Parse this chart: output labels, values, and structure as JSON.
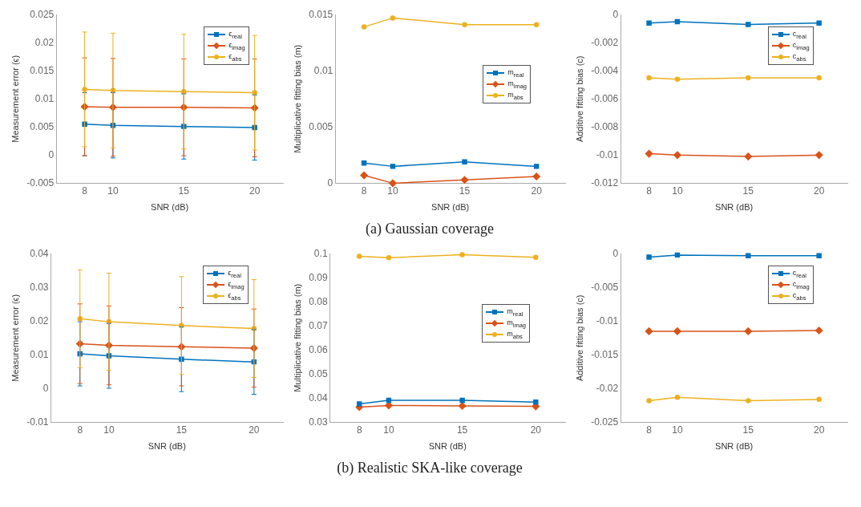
{
  "chart_data": [
    {
      "type": "line",
      "ylabel": "Measurement error (ϵ)",
      "xlabel": "SNR (dB)",
      "x": [
        8,
        10,
        15,
        20
      ],
      "xlim": [
        6,
        22
      ],
      "xticks": [
        8,
        10,
        15,
        20
      ],
      "ylim": [
        -0.005,
        0.025
      ],
      "yticks": [
        -0.005,
        0,
        0.005,
        0.01,
        0.015,
        0.02,
        0.025
      ],
      "legend": "top right",
      "series": [
        {
          "name": "ϵ$_{real}$",
          "color": "#0072bd",
          "marker": "square",
          "values": [
            0.0055,
            0.0053,
            0.0051,
            0.0049
          ],
          "errors": [
            0.0056,
            0.0058,
            0.0058,
            0.0058
          ]
        },
        {
          "name": "ϵ$_{imag}$",
          "color": "#d95319",
          "marker": "diamond",
          "values": [
            0.0086,
            0.0085,
            0.0085,
            0.0084
          ],
          "errors": [
            0.0087,
            0.0087,
            0.0086,
            0.0087
          ]
        },
        {
          "name": "ϵ$_{abs}$",
          "color": "#edb120",
          "marker": "circle",
          "values": [
            0.0117,
            0.0115,
            0.0113,
            0.0111
          ],
          "errors": [
            0.0102,
            0.0102,
            0.0102,
            0.0102
          ]
        }
      ]
    },
    {
      "type": "line",
      "ylabel": "Multiplicative fitting bias (m)",
      "xlabel": "SNR (dB)",
      "x": [
        8,
        10,
        15,
        20
      ],
      "xlim": [
        6,
        22
      ],
      "xticks": [
        8,
        10,
        15,
        20
      ],
      "ylim": [
        0,
        0.015
      ],
      "yticks": [
        0,
        0.005,
        0.01,
        0.015
      ],
      "legend": "right",
      "annotations": [
        "(a) Gaussian coverage"
      ],
      "series": [
        {
          "name": "m$_{real}$",
          "color": "#0072bd",
          "marker": "square",
          "values": [
            0.0018,
            0.0015,
            0.0019,
            0.0015
          ]
        },
        {
          "name": "m$_{imag}$",
          "color": "#d95319",
          "marker": "diamond",
          "values": [
            0.0007,
            0.0,
            0.0003,
            0.0006
          ]
        },
        {
          "name": "m$_{abs}$",
          "color": "#edb120",
          "marker": "circle",
          "values": [
            0.0139,
            0.0147,
            0.0141,
            0.0141
          ]
        }
      ]
    },
    {
      "type": "line",
      "ylabel": "Additive fitting bias (c)",
      "xlabel": "SNR (dB)",
      "x": [
        8,
        10,
        15,
        20
      ],
      "xlim": [
        6,
        22
      ],
      "xticks": [
        8,
        10,
        15,
        20
      ],
      "ylim": [
        -0.012,
        0
      ],
      "yticks": [
        -0.012,
        -0.01,
        -0.008,
        -0.006,
        -0.004,
        -0.002,
        0
      ],
      "legend": "top right",
      "series": [
        {
          "name": "c$_{real}$",
          "color": "#0072bd",
          "marker": "square",
          "values": [
            -0.0006,
            -0.0005,
            -0.0007,
            -0.0006
          ]
        },
        {
          "name": "c$_{imag}$",
          "color": "#d95319",
          "marker": "diamond",
          "values": [
            -0.0099,
            -0.01,
            -0.0101,
            -0.01
          ]
        },
        {
          "name": "c$_{abs}$",
          "color": "#edb120",
          "marker": "circle",
          "values": [
            -0.0045,
            -0.0046,
            -0.0045,
            -0.0045
          ]
        }
      ]
    },
    {
      "type": "line",
      "ylabel": "Measurement error (ϵ)",
      "xlabel": "SNR (dB)",
      "x": [
        8,
        10,
        15,
        20
      ],
      "xlim": [
        6,
        22
      ],
      "xticks": [
        8,
        10,
        15,
        20
      ],
      "ylim": [
        -0.01,
        0.04
      ],
      "yticks": [
        -0.01,
        0,
        0.01,
        0.02,
        0.03,
        0.04
      ],
      "legend": "top right",
      "series": [
        {
          "name": "ϵ$_{real}$",
          "color": "#0072bd",
          "marker": "square",
          "values": [
            0.0103,
            0.0097,
            0.0087,
            0.0079
          ],
          "errors": [
            0.0095,
            0.0096,
            0.0096,
            0.0096
          ]
        },
        {
          "name": "ϵ$_{imag}$",
          "color": "#d95319",
          "marker": "diamond",
          "values": [
            0.0133,
            0.0128,
            0.0124,
            0.012
          ],
          "errors": [
            0.0118,
            0.0117,
            0.0116,
            0.0116
          ]
        },
        {
          "name": "ϵ$_{abs}$",
          "color": "#edb120",
          "marker": "circle",
          "values": [
            0.0207,
            0.0198,
            0.0187,
            0.0178
          ],
          "errors": [
            0.0145,
            0.0144,
            0.0145,
            0.0145
          ]
        }
      ]
    },
    {
      "type": "line",
      "ylabel": "Multiplicative fitting bias (m)",
      "xlabel": "SNR (dB)",
      "x": [
        8,
        10,
        15,
        20
      ],
      "xlim": [
        6,
        22
      ],
      "xticks": [
        8,
        10,
        15,
        20
      ],
      "ylim": [
        0.03,
        0.1
      ],
      "yticks": [
        0.03,
        0.04,
        0.05,
        0.06,
        0.07,
        0.08,
        0.09,
        0.1
      ],
      "legend": "right",
      "annotations": [
        "(b) Realistic SKA-like coverage"
      ],
      "series": [
        {
          "name": "m$_{real}$",
          "color": "#0072bd",
          "marker": "square",
          "values": [
            0.0376,
            0.0391,
            0.0391,
            0.0384
          ]
        },
        {
          "name": "m$_{imag}$",
          "color": "#d95319",
          "marker": "diamond",
          "values": [
            0.0363,
            0.037,
            0.0368,
            0.0366
          ]
        },
        {
          "name": "m$_{abs}$",
          "color": "#edb120",
          "marker": "circle",
          "values": [
            0.0989,
            0.0983,
            0.0996,
            0.0985
          ]
        }
      ]
    },
    {
      "type": "line",
      "ylabel": "Additive fitting bias (c)",
      "xlabel": "SNR (dB)",
      "x": [
        8,
        10,
        15,
        20
      ],
      "xlim": [
        6,
        22
      ],
      "xticks": [
        8,
        10,
        15,
        20
      ],
      "ylim": [
        -0.025,
        0
      ],
      "yticks": [
        -0.025,
        -0.02,
        -0.015,
        -0.01,
        -0.005,
        0
      ],
      "legend": "top right",
      "series": [
        {
          "name": "c$_{real}$",
          "color": "#0072bd",
          "marker": "square",
          "values": [
            -0.0005,
            -0.0002,
            -0.0003,
            -0.0003
          ]
        },
        {
          "name": "c$_{imag}$",
          "color": "#d95319",
          "marker": "diamond",
          "values": [
            -0.0115,
            -0.0115,
            -0.0115,
            -0.0114
          ]
        },
        {
          "name": "c$_{abs}$",
          "color": "#edb120",
          "marker": "circle",
          "values": [
            -0.0218,
            -0.0213,
            -0.0218,
            -0.0216
          ]
        }
      ]
    }
  ]
}
